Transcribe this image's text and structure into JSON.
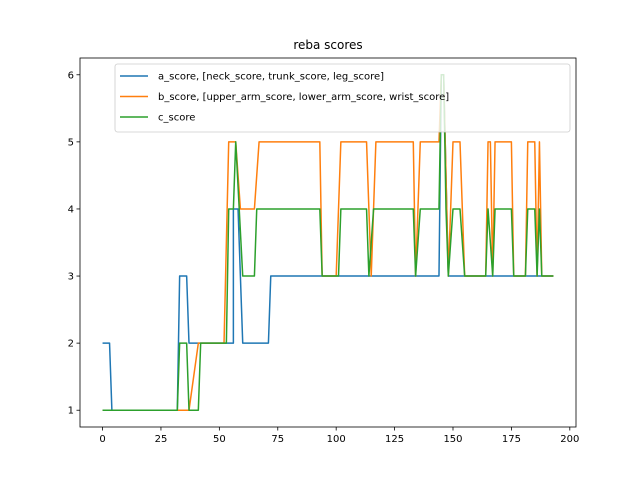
{
  "chart_data": {
    "type": "line",
    "title": "reba scores",
    "xlabel": "",
    "ylabel": "",
    "xlim": [
      -9.65,
      202.65
    ],
    "ylim": [
      0.75,
      6.25
    ],
    "xticks": [
      0,
      25,
      50,
      75,
      100,
      125,
      150,
      175,
      200
    ],
    "yticks": [
      1,
      2,
      3,
      4,
      5,
      6
    ],
    "grid": false,
    "legend_position": "top-right",
    "series": [
      {
        "name": "a_score, [neck_score, trunk_score, leg_score]",
        "color": "#1f77b4",
        "points": [
          [
            0,
            2
          ],
          [
            3,
            2
          ],
          [
            4,
            1
          ],
          [
            32,
            1
          ],
          [
            33,
            3
          ],
          [
            36,
            3
          ],
          [
            37,
            2
          ],
          [
            56,
            2
          ],
          [
            56,
            4
          ],
          [
            58,
            4
          ],
          [
            60,
            2
          ],
          [
            71,
            2
          ],
          [
            72,
            3
          ],
          [
            144,
            3
          ],
          [
            145,
            6
          ],
          [
            146,
            6
          ],
          [
            148,
            3
          ],
          [
            193,
            3
          ]
        ]
      },
      {
        "name": "b_score, [upper_arm_score, lower_arm_score, wrist_score]",
        "color": "#ff7f0e",
        "points": [
          [
            0,
            1
          ],
          [
            32,
            1
          ],
          [
            33,
            1
          ],
          [
            37,
            1
          ],
          [
            41,
            2
          ],
          [
            52,
            2
          ],
          [
            54,
            5
          ],
          [
            57,
            5
          ],
          [
            59,
            4
          ],
          [
            65,
            4
          ],
          [
            67,
            5
          ],
          [
            93,
            5
          ],
          [
            94,
            3
          ],
          [
            100,
            3
          ],
          [
            102,
            5
          ],
          [
            113,
            5
          ],
          [
            115,
            3
          ],
          [
            117,
            5
          ],
          [
            133,
            5
          ],
          [
            134,
            3
          ],
          [
            136,
            5
          ],
          [
            144,
            5
          ],
          [
            145,
            6
          ],
          [
            146,
            6
          ],
          [
            148,
            3
          ],
          [
            150,
            5
          ],
          [
            153,
            5
          ],
          [
            155,
            3
          ],
          [
            164,
            3
          ],
          [
            165,
            5
          ],
          [
            166,
            5
          ],
          [
            167,
            3
          ],
          [
            168,
            5
          ],
          [
            175,
            5
          ],
          [
            176,
            3
          ],
          [
            181,
            3
          ],
          [
            182,
            5
          ],
          [
            185,
            5
          ],
          [
            186,
            3
          ],
          [
            187,
            5
          ],
          [
            188,
            3
          ],
          [
            193,
            3
          ]
        ]
      },
      {
        "name": "c_score",
        "color": "#2ca02c",
        "points": [
          [
            0,
            1
          ],
          [
            32,
            1
          ],
          [
            33,
            2
          ],
          [
            36,
            2
          ],
          [
            37,
            1
          ],
          [
            41,
            1
          ],
          [
            42,
            2
          ],
          [
            53,
            2
          ],
          [
            54,
            4
          ],
          [
            56,
            4
          ],
          [
            57,
            5
          ],
          [
            60,
            3
          ],
          [
            65,
            3
          ],
          [
            66,
            4
          ],
          [
            93,
            4
          ],
          [
            94,
            3
          ],
          [
            101,
            3
          ],
          [
            102,
            4
          ],
          [
            113,
            4
          ],
          [
            114,
            3
          ],
          [
            116,
            4
          ],
          [
            133,
            4
          ],
          [
            134,
            3
          ],
          [
            136,
            4
          ],
          [
            144,
            4
          ],
          [
            145,
            6
          ],
          [
            146,
            6
          ],
          [
            147,
            4
          ],
          [
            148,
            3
          ],
          [
            150,
            4
          ],
          [
            153,
            4
          ],
          [
            155,
            3
          ],
          [
            164,
            3
          ],
          [
            165,
            4
          ],
          [
            167,
            3
          ],
          [
            168,
            4
          ],
          [
            175,
            4
          ],
          [
            176,
            3
          ],
          [
            181,
            3
          ],
          [
            182,
            4
          ],
          [
            184,
            4
          ],
          [
            185,
            4
          ],
          [
            186,
            3
          ],
          [
            187,
            4
          ],
          [
            188,
            3
          ],
          [
            193,
            3
          ]
        ]
      }
    ]
  }
}
